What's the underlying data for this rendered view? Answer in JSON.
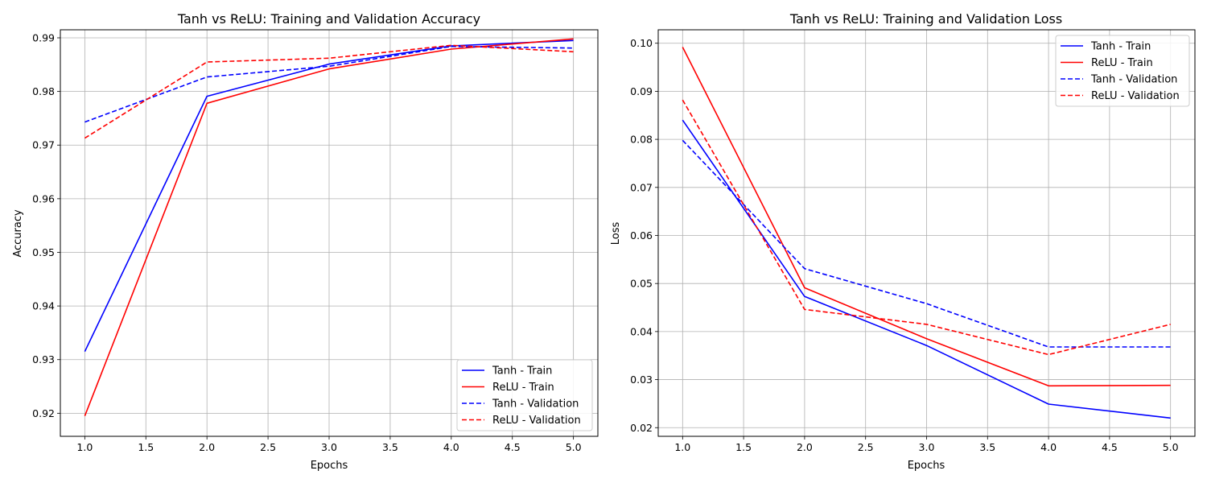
{
  "chart_data": [
    {
      "type": "line",
      "title": "Tanh vs ReLU: Training and Validation Accuracy",
      "xlabel": "Epochs",
      "ylabel": "Accuracy",
      "xlim": [
        0.8,
        5.2
      ],
      "ylim": [
        0.9157,
        0.9915
      ],
      "xticks": [
        1.0,
        1.5,
        2.0,
        2.5,
        3.0,
        3.5,
        4.0,
        4.5,
        5.0
      ],
      "xtick_labels": [
        "1.0",
        "1.5",
        "2.0",
        "2.5",
        "3.0",
        "3.5",
        "4.0",
        "4.5",
        "5.0"
      ],
      "yticks": [
        0.92,
        0.93,
        0.94,
        0.95,
        0.96,
        0.97,
        0.98,
        0.99
      ],
      "ytick_labels": [
        "0.92",
        "0.93",
        "0.94",
        "0.95",
        "0.96",
        "0.97",
        "0.98",
        "0.99"
      ],
      "grid": true,
      "legend_position": "lower-right",
      "x": [
        1,
        2,
        3,
        4,
        5
      ],
      "series": [
        {
          "name": "Tanh - Train",
          "color": "#0000ff",
          "style": "solid",
          "values": [
            0.9315,
            0.9791,
            0.9851,
            0.9885,
            0.9895
          ]
        },
        {
          "name": "ReLU - Train",
          "color": "#ff0000",
          "style": "solid",
          "values": [
            0.9195,
            0.9778,
            0.9842,
            0.9879,
            0.9898
          ]
        },
        {
          "name": "Tanh - Validation",
          "color": "#0000ff",
          "style": "dashed",
          "values": [
            0.9743,
            0.9827,
            0.9847,
            0.9884,
            0.9881
          ]
        },
        {
          "name": "ReLU - Validation",
          "color": "#ff0000",
          "style": "dashed",
          "values": [
            0.9713,
            0.9855,
            0.9862,
            0.9886,
            0.9874
          ]
        }
      ]
    },
    {
      "type": "line",
      "title": "Tanh vs ReLU: Training and Validation Loss",
      "xlabel": "Epochs",
      "ylabel": "Loss",
      "xlim": [
        0.8,
        5.2
      ],
      "ylim": [
        0.0182,
        0.1028
      ],
      "xticks": [
        1.0,
        1.5,
        2.0,
        2.5,
        3.0,
        3.5,
        4.0,
        4.5,
        5.0
      ],
      "xtick_labels": [
        "1.0",
        "1.5",
        "2.0",
        "2.5",
        "3.0",
        "3.5",
        "4.0",
        "4.5",
        "5.0"
      ],
      "yticks": [
        0.02,
        0.03,
        0.04,
        0.05,
        0.06,
        0.07,
        0.08,
        0.09,
        0.1
      ],
      "ytick_labels": [
        "0.02",
        "0.03",
        "0.04",
        "0.05",
        "0.06",
        "0.07",
        "0.08",
        "0.09",
        "0.10"
      ],
      "grid": true,
      "legend_position": "upper-right",
      "x": [
        1,
        2,
        3,
        4,
        5
      ],
      "series": [
        {
          "name": "Tanh - Train",
          "color": "#0000ff",
          "style": "solid",
          "values": [
            0.084,
            0.0473,
            0.0371,
            0.0249,
            0.022
          ]
        },
        {
          "name": "ReLU - Train",
          "color": "#ff0000",
          "style": "solid",
          "values": [
            0.0992,
            0.0491,
            0.0385,
            0.0287,
            0.0288
          ]
        },
        {
          "name": "Tanh - Validation",
          "color": "#0000ff",
          "style": "dashed",
          "values": [
            0.0798,
            0.0531,
            0.0458,
            0.0368,
            0.0368
          ]
        },
        {
          "name": "ReLU - Validation",
          "color": "#ff0000",
          "style": "dashed",
          "values": [
            0.0882,
            0.0446,
            0.0415,
            0.0352,
            0.0415
          ]
        }
      ]
    }
  ]
}
